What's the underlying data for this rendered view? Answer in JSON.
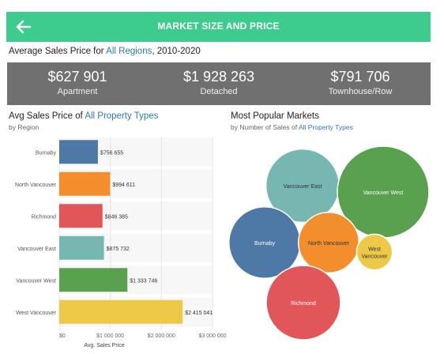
{
  "header": {
    "title": "MARKET SIZE AND PRICE",
    "back_icon": "arrow-left-icon"
  },
  "subtitle": {
    "prefix": "Average Sales Price for ",
    "link": "All Regions",
    "suffix": ", 2010-2020"
  },
  "kpis": [
    {
      "value": "$627 901",
      "label": "Apartment"
    },
    {
      "value": "$1 928 263",
      "label": "Detached"
    },
    {
      "value": "$791 706",
      "label": "Townhouse/Row"
    }
  ],
  "left_panel": {
    "title_prefix": "Avg Sales Price of ",
    "title_link": "All Property Types",
    "subtitle": "by Region"
  },
  "right_panel": {
    "title": "Most Popular Markets",
    "subtitle_prefix": "by Number of Sales of ",
    "subtitle_link": "All Property Types"
  },
  "chart_data": [
    {
      "type": "bar",
      "orientation": "horizontal",
      "title": "Avg Sales Price of All Property Types",
      "categories": [
        "Burnaby",
        "North Vancouver",
        "Richmond",
        "Vancouver East",
        "Vancouver West",
        "West Vancouver"
      ],
      "values": [
        756655,
        994611,
        846385,
        875732,
        1333746,
        2415041
      ],
      "value_labels": [
        "$756 655",
        "$994 611",
        "$846 385",
        "$875 732",
        "$1 333 746",
        "$2 415 041"
      ],
      "colors": [
        "#4e79a7",
        "#f28e2b",
        "#e15759",
        "#76b7b2",
        "#59a14f",
        "#edc948"
      ],
      "xlabel": "Avg. Sales Price",
      "xlim": [
        0,
        3000000
      ],
      "x_ticks": [
        0,
        1000000,
        2000000,
        3000000
      ],
      "x_tick_labels": [
        "$0",
        "$1 000 000",
        "$2 000 000",
        "$3 000 000"
      ],
      "grid": true
    },
    {
      "type": "bubble",
      "title": "Most Popular Markets",
      "labels": [
        "Vancouver East",
        "Vancouver West",
        "Burnaby",
        "North Vancouver",
        "West Vancouver",
        "Richmond"
      ],
      "label_lines": [
        [
          "Vancouver East"
        ],
        [
          "Vancouver West"
        ],
        [
          "Burnaby"
        ],
        [
          "North Vancouver"
        ],
        [
          "West",
          "Vancouver"
        ],
        [
          "Richmond"
        ]
      ],
      "relative_size": [
        0.8,
        1.0,
        0.78,
        0.66,
        0.39,
        0.81
      ],
      "colors": [
        "#76b7b2",
        "#59a14f",
        "#4e79a7",
        "#f28e2b",
        "#edc948",
        "#e15759"
      ]
    }
  ]
}
